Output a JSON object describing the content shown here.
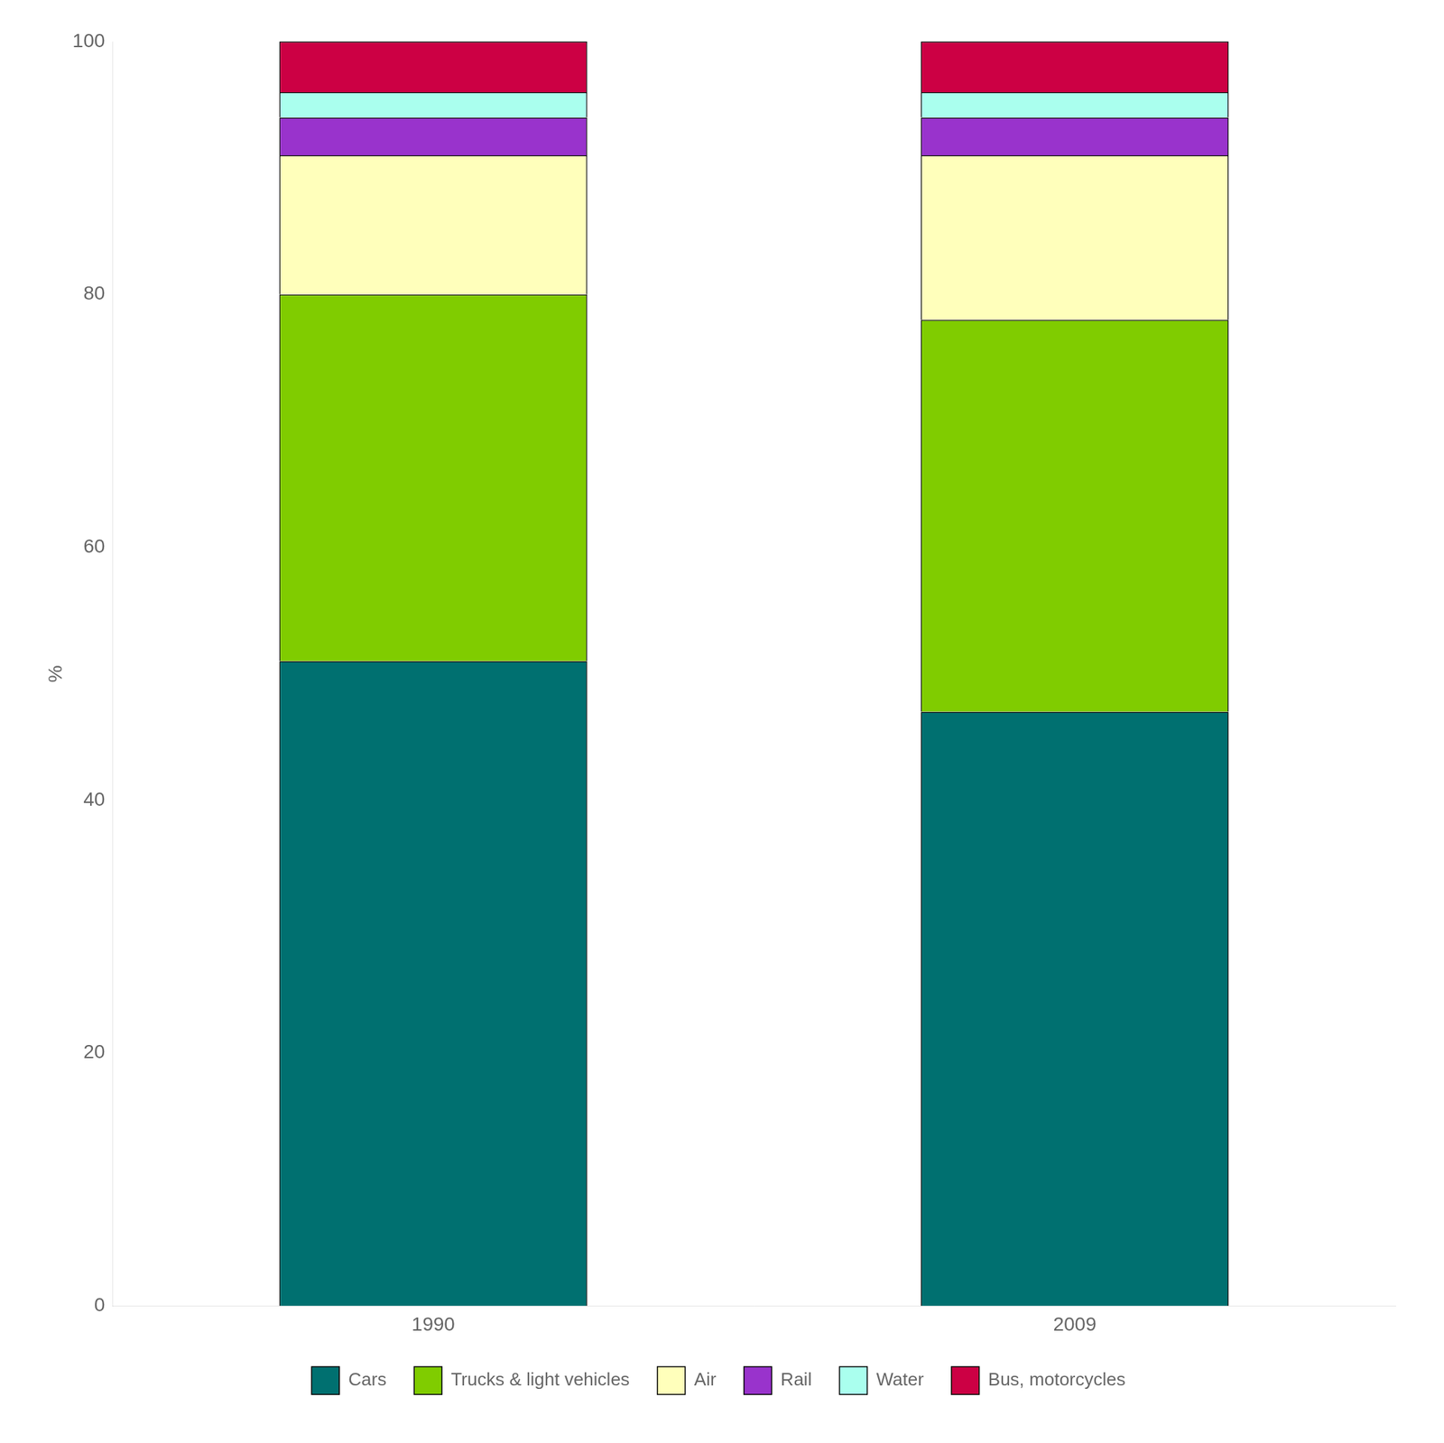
{
  "chart_data": {
    "type": "bar",
    "stacked": true,
    "categories": [
      "1990",
      "2009"
    ],
    "series": [
      {
        "name": "Cars",
        "color": "#007070",
        "values": [
          51,
          47
        ]
      },
      {
        "name": "Trucks & light vehicles",
        "color": "#80cc00",
        "values": [
          29,
          31
        ]
      },
      {
        "name": "Air",
        "color": "#ffffbb",
        "values": [
          11,
          13
        ]
      },
      {
        "name": "Rail",
        "color": "#9933cc",
        "values": [
          3,
          3
        ]
      },
      {
        "name": "Water",
        "color": "#aaffee",
        "values": [
          2,
          2
        ]
      },
      {
        "name": "Bus, motorcycles",
        "color": "#cc0044",
        "values": [
          4,
          4
        ]
      }
    ],
    "ylabel": "%",
    "ylim": [
      0,
      100
    ],
    "yticks": [
      0,
      20,
      40,
      60,
      80,
      100
    ],
    "grid": false,
    "legend": "bottom"
  }
}
